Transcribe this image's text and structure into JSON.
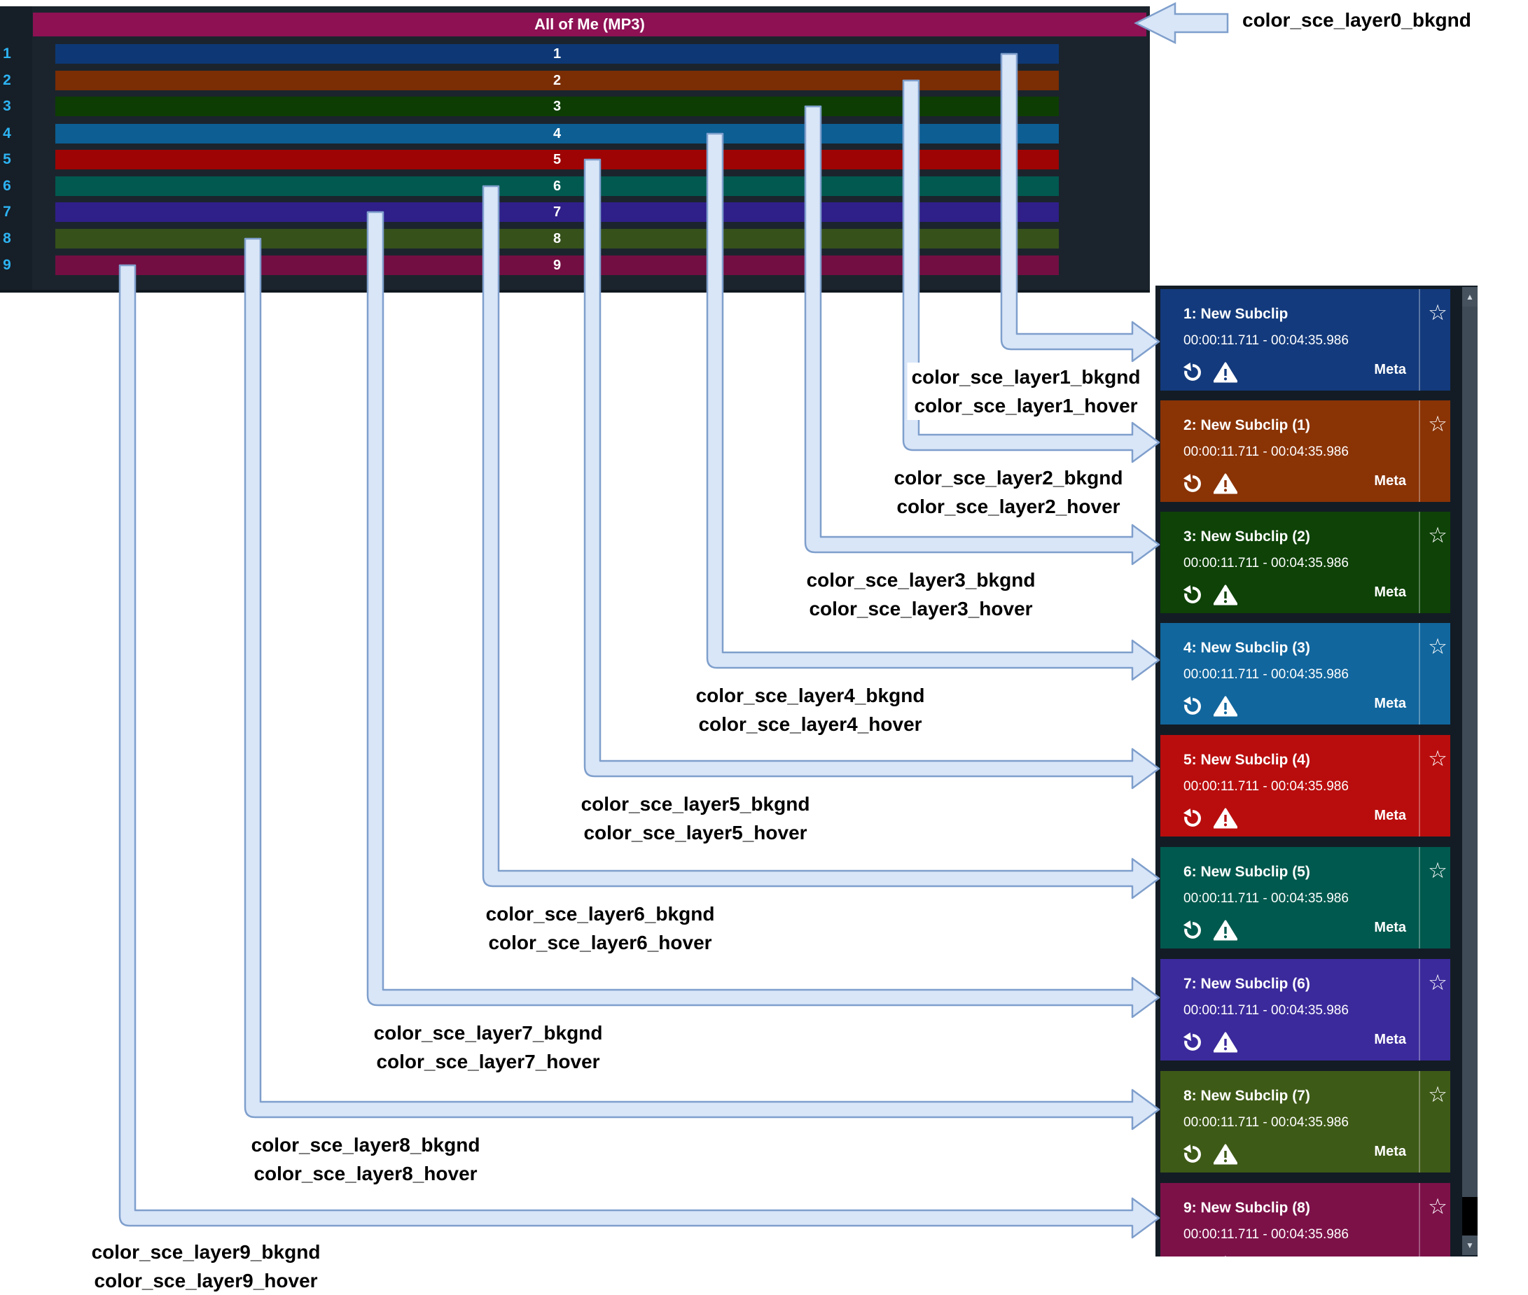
{
  "timeline": {
    "header": {
      "title": "All of Me (MP3)",
      "bkgnd": "#8e1154"
    },
    "layers": [
      {
        "num": "1",
        "bkgnd": "#0d3875"
      },
      {
        "num": "2",
        "bkgnd": "#7b2d04"
      },
      {
        "num": "3",
        "bkgnd": "#0d3d03"
      },
      {
        "num": "4",
        "bkgnd": "#0c5e93"
      },
      {
        "num": "5",
        "bkgnd": "#9e0404"
      },
      {
        "num": "6",
        "bkgnd": "#015950"
      },
      {
        "num": "7",
        "bkgnd": "#2f1f89"
      },
      {
        "num": "8",
        "bkgnd": "#36511a"
      },
      {
        "num": "9",
        "bkgnd": "#720e42"
      }
    ]
  },
  "subclip_list": {
    "star_glyph": "☆",
    "cards": [
      {
        "title": "1: New Subclip",
        "time_range": "00:00:11.711 - 00:04:35.986",
        "meta_label": "Meta",
        "color": "#133a7c",
        "show_iconrow": true
      },
      {
        "title": "2: New Subclip (1)",
        "time_range": "00:00:11.711 - 00:04:35.986",
        "meta_label": "Meta",
        "color": "#8a3305",
        "show_iconrow": true
      },
      {
        "title": "3: New Subclip (2)",
        "time_range": "00:00:11.711 - 00:04:35.986",
        "meta_label": "Meta",
        "color": "#0e4207",
        "show_iconrow": true
      },
      {
        "title": "4: New Subclip (3)",
        "time_range": "00:00:11.711 - 00:04:35.986",
        "meta_label": "Meta",
        "color": "#11669d",
        "show_iconrow": true
      },
      {
        "title": "5: New Subclip (4)",
        "time_range": "00:00:11.711 - 00:04:35.986",
        "meta_label": "Meta",
        "color": "#b90d0d",
        "show_iconrow": true
      },
      {
        "title": "6: New Subclip (5)",
        "time_range": "00:00:11.711 - 00:04:35.986",
        "meta_label": "Meta",
        "color": "#00594e",
        "show_iconrow": true
      },
      {
        "title": "7: New Subclip (6)",
        "time_range": "00:00:11.711 - 00:04:35.986",
        "meta_label": "Meta",
        "color": "#3b2a9b",
        "show_iconrow": true
      },
      {
        "title": "8: New Subclip (7)",
        "time_range": "00:00:11.711 - 00:04:35.986",
        "meta_label": "Meta",
        "color": "#3e5a17",
        "show_iconrow": true
      },
      {
        "title": "9: New Subclip (8)",
        "time_range": "00:00:11.711 - 00:04:35.986",
        "meta_label": "Meta",
        "color": "#7c1148",
        "show_iconrow": true
      }
    ],
    "scrollbar": {
      "up_glyph": "▲",
      "down_glyph": "▼"
    }
  },
  "annotations": {
    "labels": [
      {
        "lines": [
          "color_sce_layer0_bkgnd"
        ]
      },
      {
        "lines": [
          "color_sce_layer1_bkgnd",
          "color_sce_layer1_hover"
        ]
      },
      {
        "lines": [
          "color_sce_layer2_bkgnd",
          "color_sce_layer2_hover"
        ]
      },
      {
        "lines": [
          "color_sce_layer3_bkgnd",
          "color_sce_layer3_hover"
        ]
      },
      {
        "lines": [
          "color_sce_layer4_bkgnd",
          "color_sce_layer4_hover"
        ]
      },
      {
        "lines": [
          "color_sce_layer5_bkgnd",
          "color_sce_layer5_hover"
        ]
      },
      {
        "lines": [
          "color_sce_layer6_bkgnd",
          "color_sce_layer6_hover"
        ]
      },
      {
        "lines": [
          "color_sce_layer7_bkgnd",
          "color_sce_layer7_hover"
        ]
      },
      {
        "lines": [
          "color_sce_layer8_bkgnd",
          "color_sce_layer8_hover"
        ]
      },
      {
        "lines": [
          "color_sce_layer9_bkgnd",
          "color_sce_layer9_hover"
        ]
      }
    ]
  },
  "colors": {
    "page_bkgnd": "#ffffff",
    "timeline_panel_bkgnd": "#1b242d",
    "timeline_gutter_bkgnd": "#161e27",
    "gutter_number_color": "#2db3f2",
    "subclip_panel_bkgnd": "#131c25",
    "scrollbar_track": "#3f4b57",
    "scrollbar_thumb": "#000000",
    "arrow_fill": "#d9e6f8",
    "arrow_stroke": "#7f9fcc"
  }
}
